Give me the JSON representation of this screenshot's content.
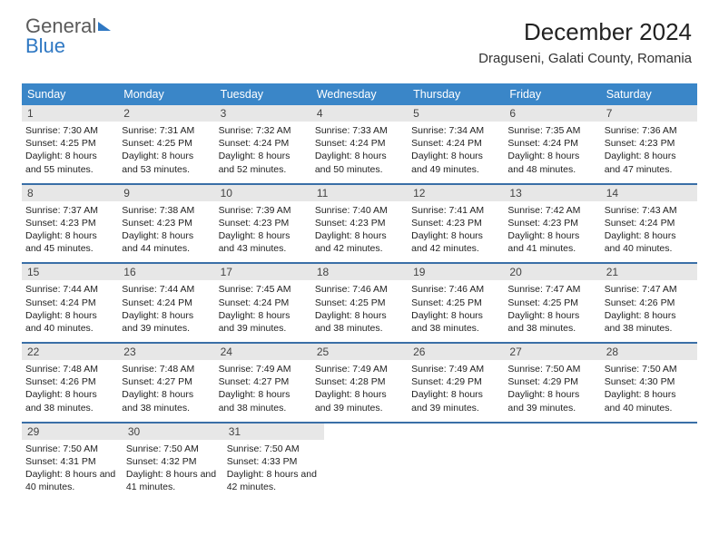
{
  "logo": {
    "part1": "General",
    "part2": "Blue"
  },
  "title": "December 2024",
  "subtitle": "Draguseni, Galati County, Romania",
  "day_headers": [
    "Sunday",
    "Monday",
    "Tuesday",
    "Wednesday",
    "Thursday",
    "Friday",
    "Saturday"
  ],
  "colors": {
    "header_bg": "#3a86c8",
    "row_border": "#3a6fa7",
    "daynum_bg": "#e7e7e7",
    "logo_blue": "#2f78c3"
  },
  "weeks": [
    [
      {
        "n": "1",
        "sr": "7:30 AM",
        "ss": "4:25 PM",
        "dl": "8 hours and 55 minutes."
      },
      {
        "n": "2",
        "sr": "7:31 AM",
        "ss": "4:25 PM",
        "dl": "8 hours and 53 minutes."
      },
      {
        "n": "3",
        "sr": "7:32 AM",
        "ss": "4:24 PM",
        "dl": "8 hours and 52 minutes."
      },
      {
        "n": "4",
        "sr": "7:33 AM",
        "ss": "4:24 PM",
        "dl": "8 hours and 50 minutes."
      },
      {
        "n": "5",
        "sr": "7:34 AM",
        "ss": "4:24 PM",
        "dl": "8 hours and 49 minutes."
      },
      {
        "n": "6",
        "sr": "7:35 AM",
        "ss": "4:24 PM",
        "dl": "8 hours and 48 minutes."
      },
      {
        "n": "7",
        "sr": "7:36 AM",
        "ss": "4:23 PM",
        "dl": "8 hours and 47 minutes."
      }
    ],
    [
      {
        "n": "8",
        "sr": "7:37 AM",
        "ss": "4:23 PM",
        "dl": "8 hours and 45 minutes."
      },
      {
        "n": "9",
        "sr": "7:38 AM",
        "ss": "4:23 PM",
        "dl": "8 hours and 44 minutes."
      },
      {
        "n": "10",
        "sr": "7:39 AM",
        "ss": "4:23 PM",
        "dl": "8 hours and 43 minutes."
      },
      {
        "n": "11",
        "sr": "7:40 AM",
        "ss": "4:23 PM",
        "dl": "8 hours and 42 minutes."
      },
      {
        "n": "12",
        "sr": "7:41 AM",
        "ss": "4:23 PM",
        "dl": "8 hours and 42 minutes."
      },
      {
        "n": "13",
        "sr": "7:42 AM",
        "ss": "4:23 PM",
        "dl": "8 hours and 41 minutes."
      },
      {
        "n": "14",
        "sr": "7:43 AM",
        "ss": "4:24 PM",
        "dl": "8 hours and 40 minutes."
      }
    ],
    [
      {
        "n": "15",
        "sr": "7:44 AM",
        "ss": "4:24 PM",
        "dl": "8 hours and 40 minutes."
      },
      {
        "n": "16",
        "sr": "7:44 AM",
        "ss": "4:24 PM",
        "dl": "8 hours and 39 minutes."
      },
      {
        "n": "17",
        "sr": "7:45 AM",
        "ss": "4:24 PM",
        "dl": "8 hours and 39 minutes."
      },
      {
        "n": "18",
        "sr": "7:46 AM",
        "ss": "4:25 PM",
        "dl": "8 hours and 38 minutes."
      },
      {
        "n": "19",
        "sr": "7:46 AM",
        "ss": "4:25 PM",
        "dl": "8 hours and 38 minutes."
      },
      {
        "n": "20",
        "sr": "7:47 AM",
        "ss": "4:25 PM",
        "dl": "8 hours and 38 minutes."
      },
      {
        "n": "21",
        "sr": "7:47 AM",
        "ss": "4:26 PM",
        "dl": "8 hours and 38 minutes."
      }
    ],
    [
      {
        "n": "22",
        "sr": "7:48 AM",
        "ss": "4:26 PM",
        "dl": "8 hours and 38 minutes."
      },
      {
        "n": "23",
        "sr": "7:48 AM",
        "ss": "4:27 PM",
        "dl": "8 hours and 38 minutes."
      },
      {
        "n": "24",
        "sr": "7:49 AM",
        "ss": "4:27 PM",
        "dl": "8 hours and 38 minutes."
      },
      {
        "n": "25",
        "sr": "7:49 AM",
        "ss": "4:28 PM",
        "dl": "8 hours and 39 minutes."
      },
      {
        "n": "26",
        "sr": "7:49 AM",
        "ss": "4:29 PM",
        "dl": "8 hours and 39 minutes."
      },
      {
        "n": "27",
        "sr": "7:50 AM",
        "ss": "4:29 PM",
        "dl": "8 hours and 39 minutes."
      },
      {
        "n": "28",
        "sr": "7:50 AM",
        "ss": "4:30 PM",
        "dl": "8 hours and 40 minutes."
      }
    ],
    [
      {
        "n": "29",
        "sr": "7:50 AM",
        "ss": "4:31 PM",
        "dl": "8 hours and 40 minutes."
      },
      {
        "n": "30",
        "sr": "7:50 AM",
        "ss": "4:32 PM",
        "dl": "8 hours and 41 minutes."
      },
      {
        "n": "31",
        "sr": "7:50 AM",
        "ss": "4:33 PM",
        "dl": "8 hours and 42 minutes."
      },
      null,
      null,
      null,
      null
    ]
  ],
  "labels": {
    "sunrise": "Sunrise: ",
    "sunset": "Sunset: ",
    "daylight": "Daylight: "
  }
}
